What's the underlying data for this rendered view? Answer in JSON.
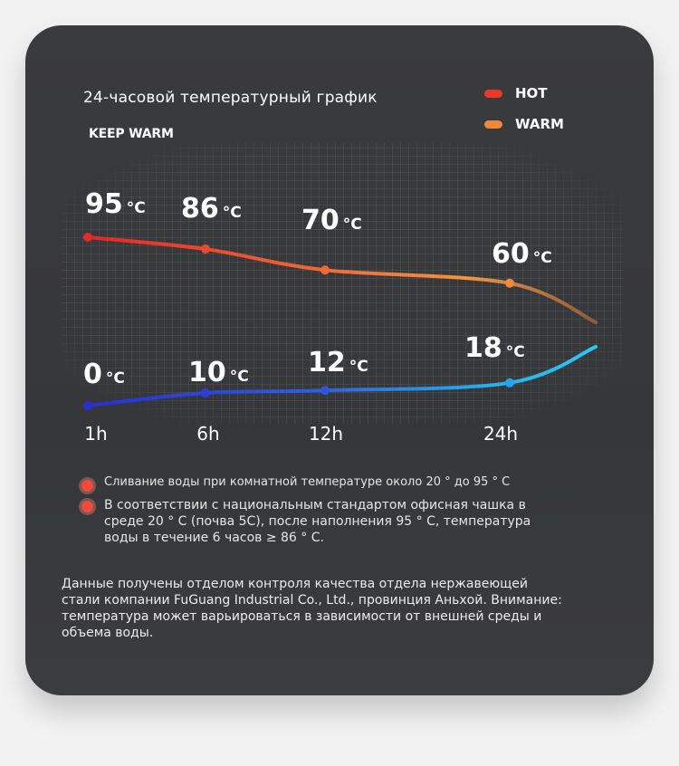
{
  "header": {
    "title": "24-часовой температурный график",
    "subtitle": "KEEP WARM"
  },
  "legend": [
    {
      "label": "HOT",
      "color": "#e8392c"
    },
    {
      "label": "WARM",
      "color": "#f0883a"
    }
  ],
  "chart_data": {
    "type": "line",
    "title": "24-часовой температурный график",
    "categories": [
      "1h",
      "6h",
      "12h",
      "24h"
    ],
    "unit": "°C",
    "series": [
      {
        "color": "#f07a35",
        "labels": [
          "95",
          "86",
          "70",
          "60"
        ],
        "values": [
          95,
          86,
          70,
          60
        ]
      },
      {
        "color": "#2f6fe0",
        "labels": [
          "0",
          "10",
          "12",
          "18"
        ],
        "values": [
          0,
          10,
          12,
          18
        ]
      }
    ],
    "grid": true
  },
  "notes": [
    "Сливание воды при комнатной температуре около 20 ° до 95 ° C",
    "В соответствии с национальным стандартом офисная чашка в среде 20 ° C (почва 5C), после наполнения 95 ° C, температура воды в течение 6 часов ≥ 86 ° C."
  ],
  "footer": "Данные получены отделом контроля качества отдела нержавеющей стали компании FuGuang Industrial Co., Ltd., провинция Аньхой. Внимание: температура может варьироваться в зависимости от внешней среды и объема воды."
}
